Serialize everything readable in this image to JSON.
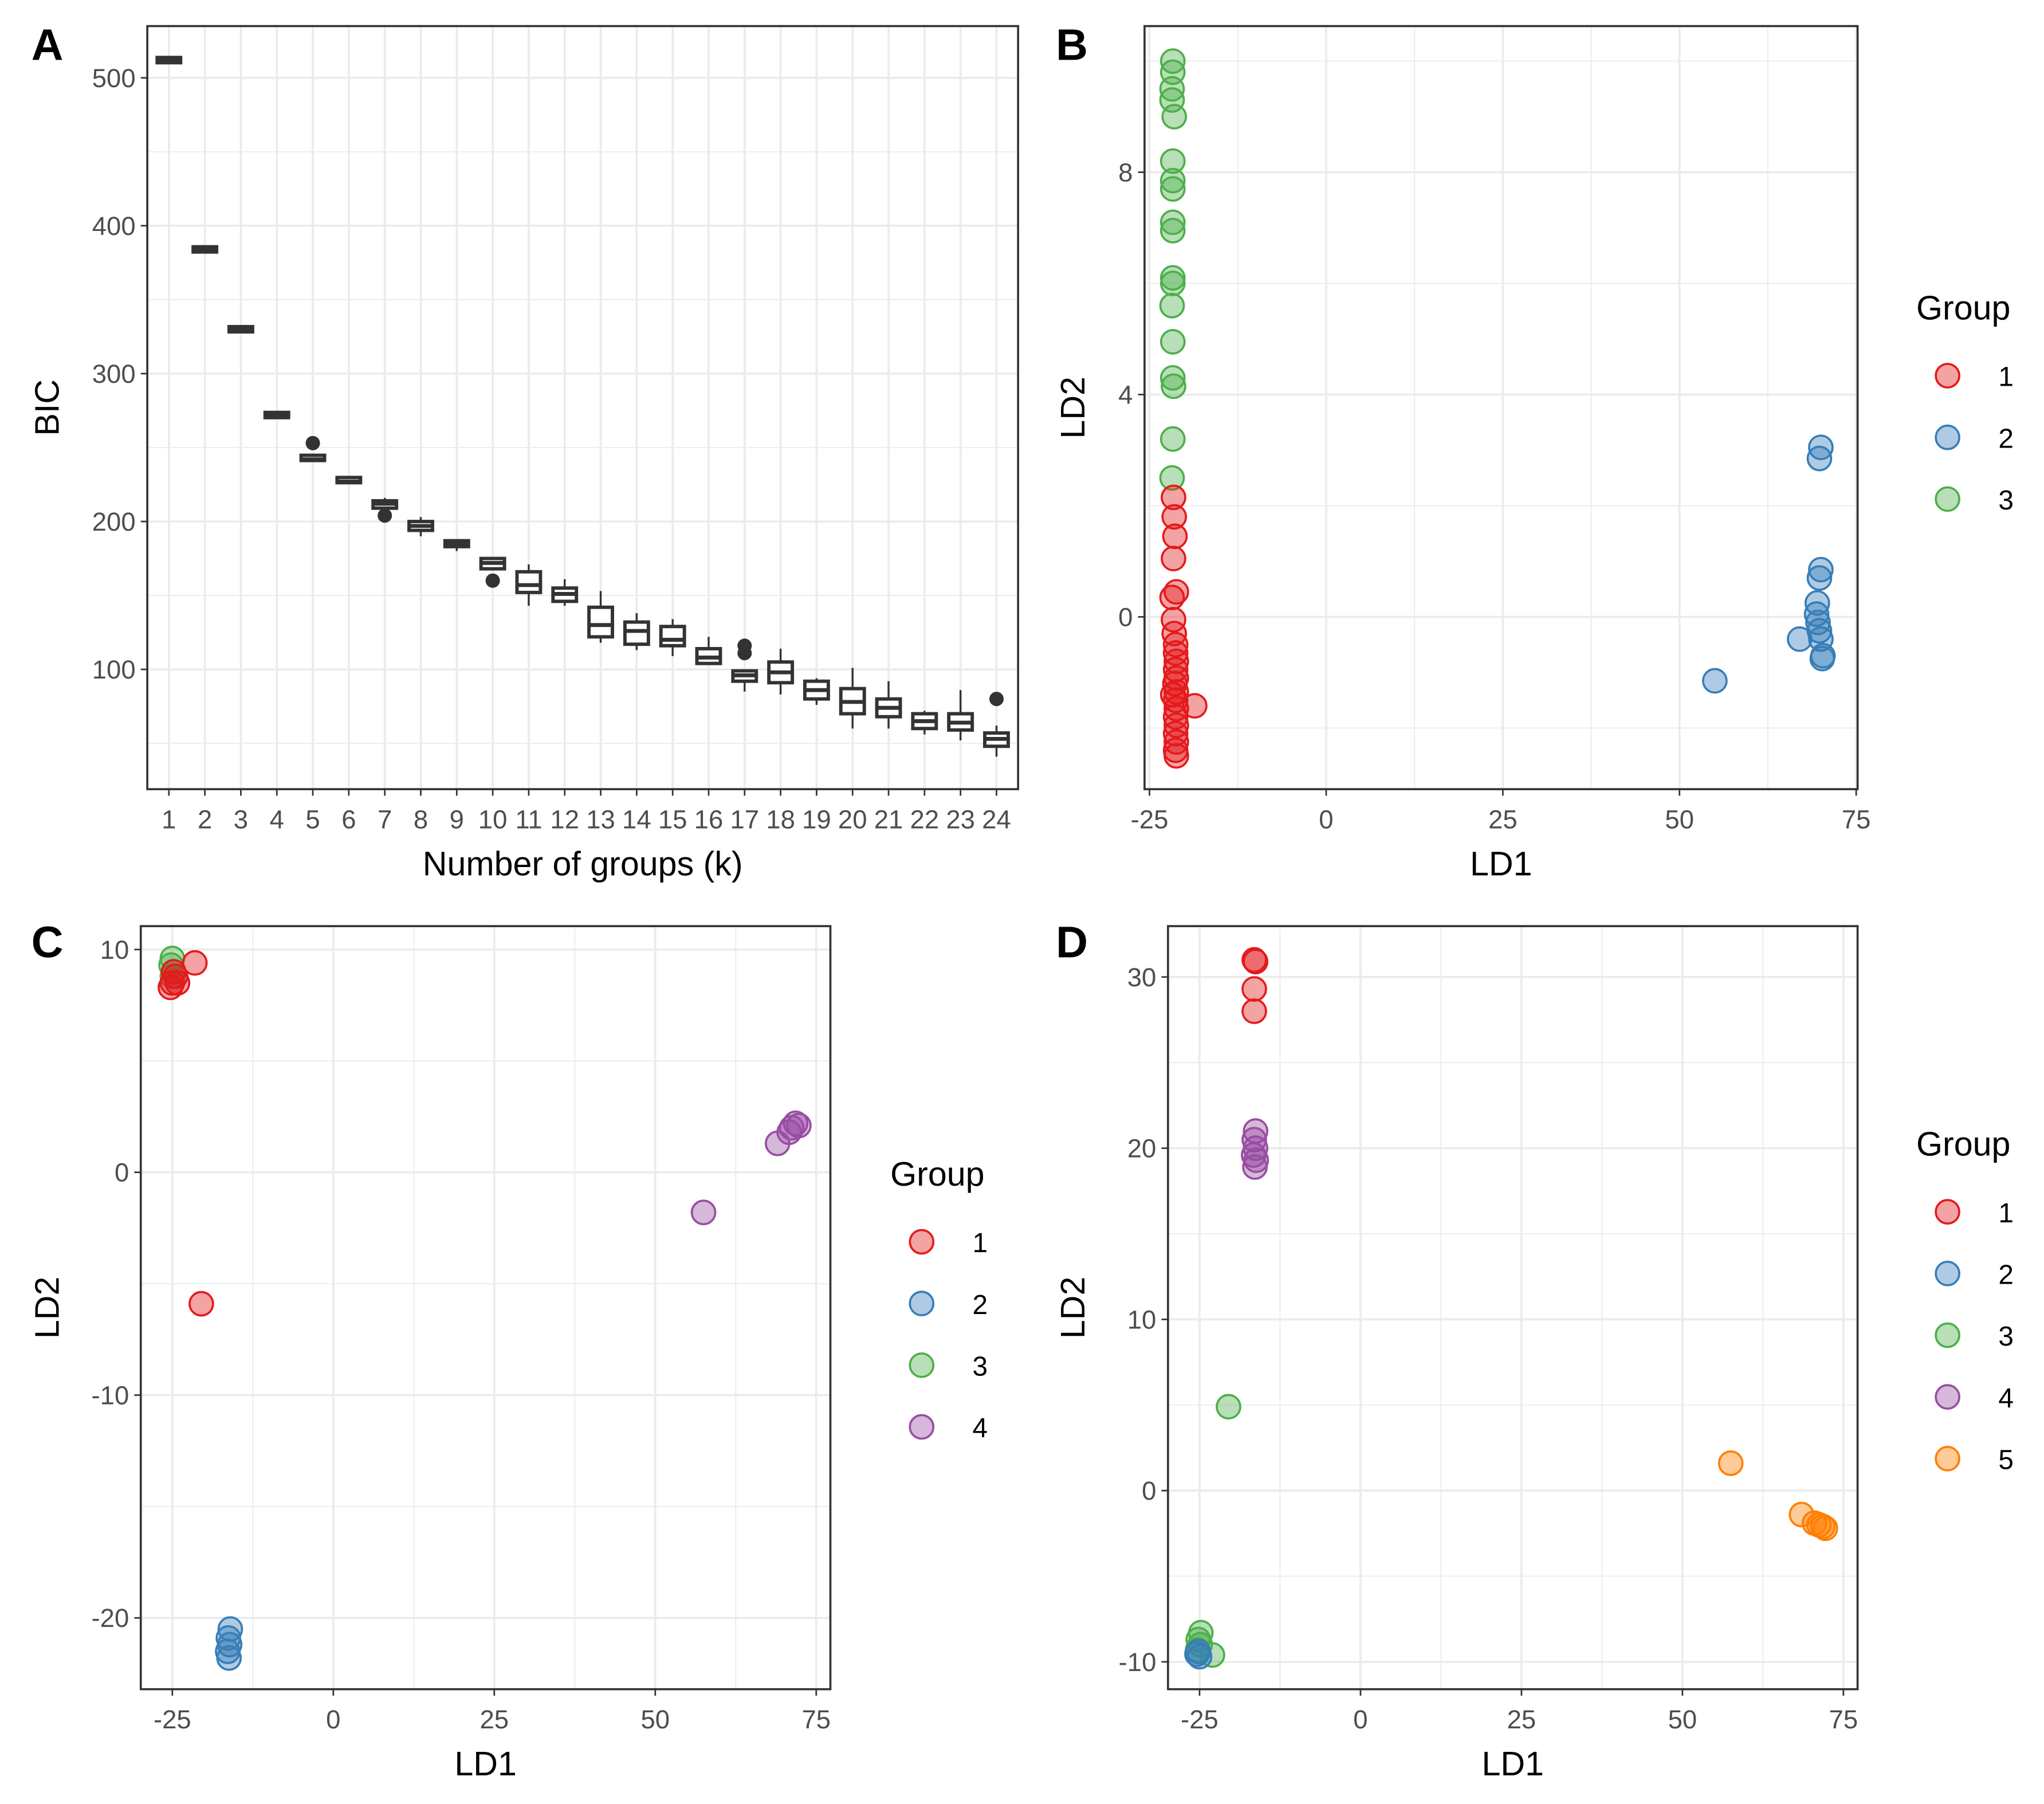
{
  "chart_data": [
    {
      "panel": "A",
      "type": "box",
      "xlabel": "Number of groups (k)",
      "ylabel": "BIC",
      "ylim": [
        19,
        535
      ],
      "yticks": [
        100,
        200,
        300,
        400,
        500
      ],
      "categories": [
        "1",
        "2",
        "3",
        "4",
        "5",
        "6",
        "7",
        "8",
        "9",
        "10",
        "11",
        "12",
        "13",
        "14",
        "15",
        "16",
        "17",
        "18",
        "19",
        "20",
        "21",
        "22",
        "23",
        "24"
      ],
      "boxes": [
        {
          "min": 512,
          "q1": 512,
          "median": 512,
          "q3": 512,
          "max": 512,
          "outliers": []
        },
        {
          "min": 384,
          "q1": 384,
          "median": 384,
          "q3": 384,
          "max": 384,
          "outliers": []
        },
        {
          "min": 330,
          "q1": 330,
          "median": 330,
          "q3": 330,
          "max": 330,
          "outliers": []
        },
        {
          "min": 272,
          "q1": 272,
          "median": 272,
          "q3": 272,
          "max": 272,
          "outliers": []
        },
        {
          "min": 241,
          "q1": 241,
          "median": 242,
          "q3": 243,
          "max": 243,
          "outliers": [
            253
          ]
        },
        {
          "min": 225,
          "q1": 225,
          "median": 227,
          "q3": 228,
          "max": 230,
          "outliers": []
        },
        {
          "min": 209,
          "q1": 209,
          "median": 212,
          "q3": 214,
          "max": 216,
          "outliers": [
            204
          ]
        },
        {
          "min": 190,
          "q1": 194,
          "median": 197,
          "q3": 200,
          "max": 203,
          "outliers": []
        },
        {
          "min": 180,
          "q1": 183,
          "median": 185,
          "q3": 187,
          "max": 188,
          "outliers": []
        },
        {
          "min": 168,
          "q1": 168,
          "median": 172,
          "q3": 175,
          "max": 176,
          "outliers": [
            160
          ]
        },
        {
          "min": 143,
          "q1": 152,
          "median": 157,
          "q3": 166,
          "max": 171,
          "outliers": []
        },
        {
          "min": 143,
          "q1": 146,
          "median": 151,
          "q3": 155,
          "max": 161,
          "outliers": []
        },
        {
          "min": 118,
          "q1": 122,
          "median": 130,
          "q3": 142,
          "max": 153,
          "outliers": []
        },
        {
          "min": 113,
          "q1": 117,
          "median": 126,
          "q3": 132,
          "max": 138,
          "outliers": []
        },
        {
          "min": 109,
          "q1": 116,
          "median": 120,
          "q3": 129,
          "max": 134,
          "outliers": []
        },
        {
          "min": 104,
          "q1": 104,
          "median": 108,
          "q3": 114,
          "max": 122,
          "outliers": []
        },
        {
          "min": 85,
          "q1": 92,
          "median": 96,
          "q3": 99,
          "max": 99,
          "outliers": [
            111,
            116
          ]
        },
        {
          "min": 83,
          "q1": 91,
          "median": 98,
          "q3": 105,
          "max": 114,
          "outliers": []
        },
        {
          "min": 76,
          "q1": 80,
          "median": 86,
          "q3": 92,
          "max": 94,
          "outliers": []
        },
        {
          "min": 60,
          "q1": 70,
          "median": 78,
          "q3": 87,
          "max": 101,
          "outliers": []
        },
        {
          "min": 60,
          "q1": 68,
          "median": 74,
          "q3": 80,
          "max": 92,
          "outliers": []
        },
        {
          "min": 56,
          "q1": 60,
          "median": 65,
          "q3": 70,
          "max": 72,
          "outliers": []
        },
        {
          "min": 52,
          "q1": 59,
          "median": 64,
          "q3": 70,
          "max": 86,
          "outliers": []
        },
        {
          "min": 41,
          "q1": 48,
          "median": 53,
          "q3": 57,
          "max": 62,
          "outliers": [
            80
          ]
        }
      ]
    },
    {
      "panel": "B",
      "type": "scatter",
      "xlabel": "LD1",
      "ylabel": "LD2",
      "xlim": [
        -25.7,
        75.2
      ],
      "ylim": [
        -3.1,
        10.63
      ],
      "xticks": [
        -25,
        0,
        25,
        50,
        75
      ],
      "yticks": [
        0,
        4,
        8
      ],
      "legend": {
        "title": "Group",
        "entries": [
          "1",
          "2",
          "3"
        ]
      },
      "points": [
        [
          -21.7,
          10.0,
          3
        ],
        [
          -21.7,
          9.8,
          3
        ],
        [
          -21.8,
          9.5,
          3
        ],
        [
          -21.8,
          9.3,
          3
        ],
        [
          -21.5,
          9.0,
          3
        ],
        [
          -21.7,
          8.2,
          3
        ],
        [
          -21.7,
          7.85,
          3
        ],
        [
          -21.7,
          7.7,
          3
        ],
        [
          -21.7,
          7.1,
          3
        ],
        [
          -21.7,
          6.95,
          3
        ],
        [
          -21.7,
          6.1,
          3
        ],
        [
          -21.7,
          6.0,
          3
        ],
        [
          -21.8,
          5.6,
          3
        ],
        [
          -21.7,
          4.95,
          3
        ],
        [
          -21.7,
          4.3,
          3
        ],
        [
          -21.6,
          4.15,
          3
        ],
        [
          -21.7,
          3.2,
          3
        ],
        [
          -21.8,
          2.5,
          3
        ],
        [
          -21.6,
          2.15,
          1
        ],
        [
          -21.5,
          1.8,
          1
        ],
        [
          -21.4,
          1.45,
          1
        ],
        [
          -21.6,
          1.05,
          1
        ],
        [
          -21.2,
          0.45,
          1
        ],
        [
          -21.8,
          0.35,
          1
        ],
        [
          -21.6,
          -0.05,
          1
        ],
        [
          -21.5,
          -0.3,
          1
        ],
        [
          -21.3,
          -0.5,
          1
        ],
        [
          -21.3,
          -0.65,
          1
        ],
        [
          -21.2,
          -0.8,
          1
        ],
        [
          -21.3,
          -0.95,
          1
        ],
        [
          -21.2,
          -1.1,
          1
        ],
        [
          -21.4,
          -1.2,
          1
        ],
        [
          -21.2,
          -1.35,
          1
        ],
        [
          -21.7,
          -1.4,
          1
        ],
        [
          -21.3,
          -1.5,
          1
        ],
        [
          -21.2,
          -1.65,
          1
        ],
        [
          -21.3,
          -1.8,
          1
        ],
        [
          -21.2,
          -1.95,
          1
        ],
        [
          -21.3,
          -2.1,
          1
        ],
        [
          -21.2,
          -2.25,
          1
        ],
        [
          -21.3,
          -2.4,
          1
        ],
        [
          -21.2,
          -2.5,
          1
        ],
        [
          -18.6,
          -1.6,
          1
        ],
        [
          70.0,
          3.05,
          2
        ],
        [
          69.8,
          2.85,
          2
        ],
        [
          70.0,
          0.85,
          2
        ],
        [
          69.8,
          0.7,
          2
        ],
        [
          69.5,
          0.25,
          2
        ],
        [
          69.4,
          0.05,
          2
        ],
        [
          69.6,
          -0.1,
          2
        ],
        [
          69.8,
          -0.25,
          2
        ],
        [
          70.0,
          -0.4,
          2
        ],
        [
          70.3,
          -0.7,
          2
        ],
        [
          70.2,
          -0.75,
          2
        ],
        [
          67.0,
          -0.4,
          2
        ],
        [
          55.0,
          -1.15,
          2
        ]
      ]
    },
    {
      "panel": "C",
      "type": "scatter",
      "xlabel": "LD1",
      "ylabel": "LD2",
      "xlim": [
        -29.9,
        77.2
      ],
      "ylim": [
        -23.2,
        11.05
      ],
      "xticks": [
        -25,
        0,
        25,
        50,
        75
      ],
      "yticks": [
        -20,
        -10,
        0,
        10
      ],
      "legend": {
        "title": "Group",
        "entries": [
          "1",
          "2",
          "3",
          "4"
        ]
      },
      "points": [
        [
          -25,
          9.6,
          3
        ],
        [
          -25.2,
          9.3,
          3
        ],
        [
          -24.8,
          9.0,
          3
        ],
        [
          -25,
          8.8,
          3
        ],
        [
          -21.5,
          9.4,
          1
        ],
        [
          -24.8,
          9.0,
          1
        ],
        [
          -24.5,
          8.8,
          1
        ],
        [
          -25,
          8.5,
          1
        ],
        [
          -25.3,
          8.3,
          1
        ],
        [
          -24.2,
          8.5,
          1
        ],
        [
          -20.5,
          -5.9,
          1
        ],
        [
          -16,
          -20.5,
          2
        ],
        [
          -16.3,
          -20.9,
          2
        ],
        [
          -16.1,
          -21.2,
          2
        ],
        [
          -16.4,
          -21.5,
          2
        ],
        [
          -16.2,
          -21.8,
          2
        ],
        [
          71.8,
          2.2,
          4
        ],
        [
          71.2,
          2.0,
          4
        ],
        [
          70.8,
          1.8,
          4
        ],
        [
          72.3,
          2.1,
          4
        ],
        [
          69,
          1.3,
          4
        ],
        [
          57.5,
          -1.8,
          4
        ]
      ]
    },
    {
      "panel": "D",
      "type": "scatter",
      "xlabel": "LD1",
      "ylabel": "LD2",
      "xlim": [
        -29.9,
        77.2
      ],
      "ylim": [
        -11.6,
        32.97
      ],
      "xticks": [
        -25,
        0,
        25,
        50,
        75
      ],
      "yticks": [
        -10,
        0,
        10,
        20,
        30
      ],
      "legend": {
        "title": "Group",
        "entries": [
          "1",
          "2",
          "3",
          "4",
          "5"
        ]
      },
      "points": [
        [
          -16.5,
          31.0,
          1
        ],
        [
          -16.3,
          30.9,
          1
        ],
        [
          -16.5,
          29.3,
          1
        ],
        [
          -16.5,
          28.0,
          1
        ],
        [
          -16.3,
          21.0,
          4
        ],
        [
          -16.5,
          20.5,
          4
        ],
        [
          -16.3,
          20.0,
          4
        ],
        [
          -16.6,
          19.6,
          4
        ],
        [
          -16.2,
          19.3,
          4
        ],
        [
          -16.4,
          18.9,
          4
        ],
        [
          -20.5,
          4.9,
          3
        ],
        [
          -24.8,
          -8.3,
          3
        ],
        [
          -25.2,
          -8.7,
          3
        ],
        [
          -24.9,
          -9.0,
          3
        ],
        [
          -25.3,
          -9.3,
          3
        ],
        [
          -23,
          -9.6,
          3
        ],
        [
          -25.2,
          -9.4,
          2
        ],
        [
          -25,
          -9.7,
          2
        ],
        [
          -25.4,
          -9.55,
          2
        ],
        [
          57.5,
          1.6,
          5
        ],
        [
          68.5,
          -1.4,
          5
        ],
        [
          70.5,
          -1.9,
          5
        ],
        [
          71.2,
          -2.0,
          5
        ],
        [
          71.8,
          -2.1,
          5
        ],
        [
          72.2,
          -2.2,
          5
        ]
      ]
    }
  ],
  "group_colors": {
    "1": "#E41A1C",
    "2": "#377EB8",
    "3": "#4DAF4A",
    "4": "#984EA3",
    "5": "#FF7F00"
  }
}
